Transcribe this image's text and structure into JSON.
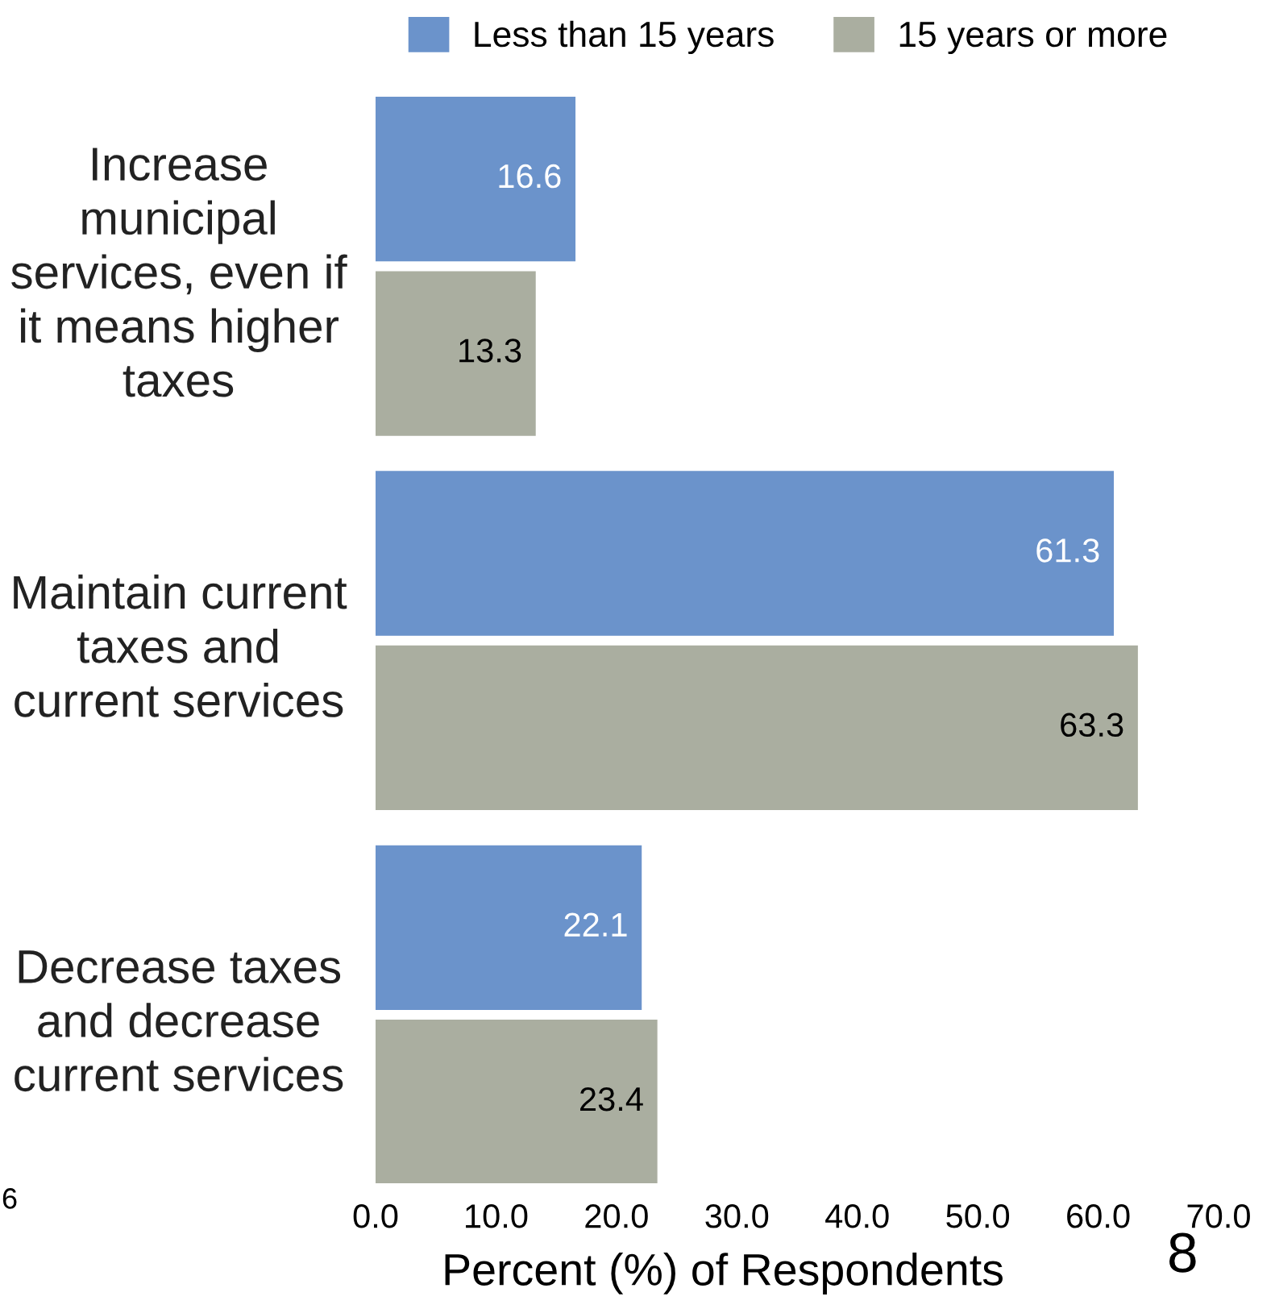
{
  "chart_data": {
    "type": "bar",
    "orientation": "horizontal",
    "categories": [
      "Increase\nmunicipal\nservices, even if\nit means higher\ntaxes",
      "Maintain current\ntaxes and\ncurrent services",
      "Decrease taxes\nand decrease\ncurrent services"
    ],
    "series": [
      {
        "name": "Less than 15 years",
        "color": "#6b93cb",
        "values": [
          16.6,
          61.3,
          22.1
        ]
      },
      {
        "name": "15 years or more",
        "color": "#aaaea0",
        "values": [
          13.3,
          63.3,
          23.4
        ]
      }
    ],
    "xlabel": "Percent (%) of Respondents",
    "xlim": [
      0,
      70
    ],
    "xticks": [
      {
        "value": 0,
        "label": "0.0"
      },
      {
        "value": 10,
        "label": "10.0"
      },
      {
        "value": 20,
        "label": "20.0"
      },
      {
        "value": 30,
        "label": "30.0"
      },
      {
        "value": 40,
        "label": "40.0"
      },
      {
        "value": 50,
        "label": "50.0"
      },
      {
        "value": 60,
        "label": "60.0"
      },
      {
        "value": 70,
        "label": "70.0"
      }
    ],
    "data_labels": true,
    "legend": "top",
    "annotations": [
      "6",
      "8"
    ]
  }
}
